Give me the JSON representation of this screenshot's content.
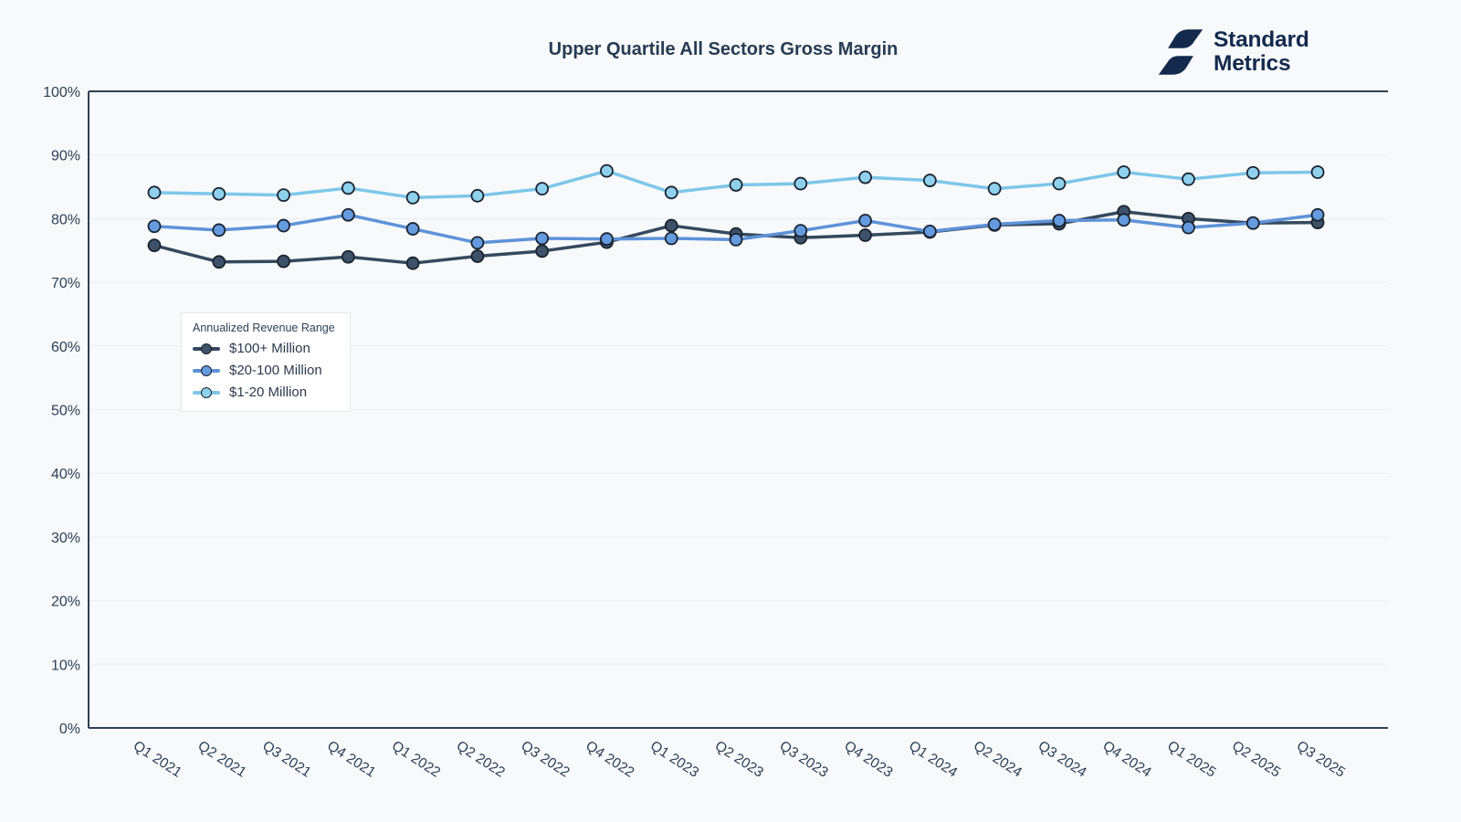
{
  "brand": {
    "line1": "Standard",
    "line2": "Metrics"
  },
  "chart_data": {
    "type": "line",
    "title": "Upper Quartile All Sectors Gross Margin",
    "legend_title": "Annualized Revenue Range",
    "legend_position": "upper-left-inside",
    "grid": "horizontal",
    "ylim": [
      0,
      100
    ],
    "ytick_step": 10,
    "ytick_suffix": "%",
    "xlabel": "",
    "ylabel": "",
    "categories": [
      "Q1 2021",
      "Q2 2021",
      "Q3 2021",
      "Q4 2021",
      "Q1 2022",
      "Q2 2022",
      "Q3 2022",
      "Q4 2022",
      "Q1 2023",
      "Q2 2023",
      "Q3 2023",
      "Q4 2023",
      "Q1 2024",
      "Q2 2024",
      "Q3 2024",
      "Q4 2024",
      "Q1 2025",
      "Q2 2025",
      "Q3 2025"
    ],
    "series": [
      {
        "name": "$100+ Million",
        "color": "#35495e",
        "marker_fill": "#3d5269",
        "values": [
          75.8,
          73.2,
          73.3,
          74.0,
          73.0,
          74.1,
          74.9,
          76.3,
          78.9,
          77.6,
          77.0,
          77.4,
          77.9,
          79.0,
          79.2,
          81.1,
          80.0,
          79.3,
          79.4
        ]
      },
      {
        "name": "$20-100 Million",
        "color": "#5e92d8",
        "marker_fill": "#649ade",
        "values": [
          78.8,
          78.2,
          78.9,
          80.6,
          78.4,
          76.2,
          76.9,
          76.8,
          76.9,
          76.7,
          78.1,
          79.7,
          78.0,
          79.1,
          79.7,
          79.8,
          78.6,
          79.3,
          80.6
        ]
      },
      {
        "name": "$1-20 Million",
        "color": "#7cc7e9",
        "marker_fill": "#8fd1ed",
        "values": [
          84.1,
          83.9,
          83.7,
          84.8,
          83.3,
          83.6,
          84.7,
          87.5,
          84.1,
          85.3,
          85.5,
          86.5,
          86.0,
          84.7,
          85.5,
          87.3,
          86.2,
          87.2,
          87.3
        ]
      }
    ],
    "colors": {
      "axis": "#2e4156",
      "gridline": "#e9edf0",
      "tick_text": "#2e4156",
      "marker_stroke": "#1a2330"
    }
  }
}
